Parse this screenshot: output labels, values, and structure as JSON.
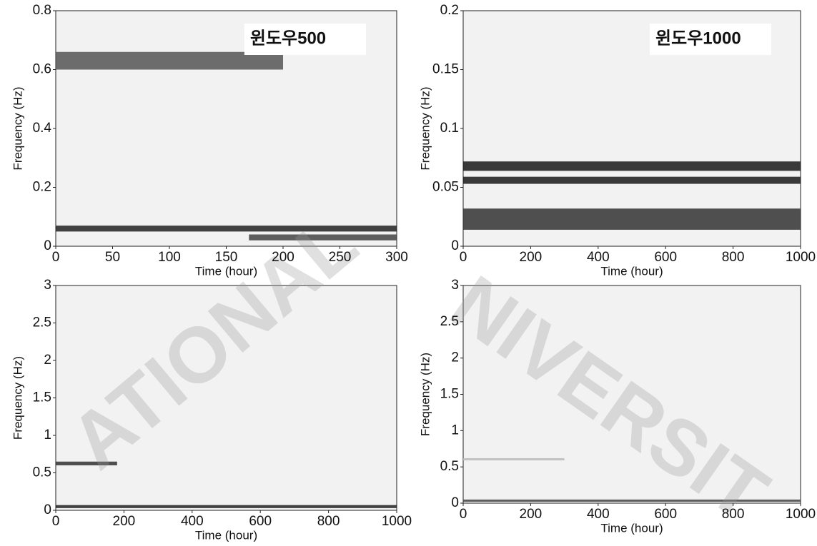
{
  "chart_data": [
    {
      "type": "spectrogram",
      "annotation": "윈도우500",
      "xlabel": "Time (hour)",
      "ylabel": "Frequency (Hz)",
      "xlim": [
        0,
        300
      ],
      "xticks": [
        0,
        50,
        100,
        150,
        200,
        250,
        300
      ],
      "ylim": [
        0,
        0.8
      ],
      "yticks": [
        0,
        0.2,
        0.4,
        0.6,
        0.8
      ],
      "bands": [
        {
          "freq": [
            0.6,
            0.66
          ],
          "time": [
            0,
            200
          ],
          "color": "#555555"
        },
        {
          "freq": [
            0.05,
            0.07
          ],
          "time": [
            0,
            300
          ],
          "color": "#222222"
        },
        {
          "freq": [
            0.02,
            0.04
          ],
          "time": [
            170,
            300
          ],
          "color": "#444444"
        }
      ]
    },
    {
      "type": "spectrogram",
      "annotation": "윈도우1000",
      "xlabel": "Time (hour)",
      "ylabel": "Frequency (Hz)",
      "xlim": [
        0,
        1000
      ],
      "xticks": [
        0,
        200,
        400,
        600,
        800,
        1000
      ],
      "ylim": [
        0,
        0.2
      ],
      "yticks": [
        0,
        0.05,
        0.1,
        0.15,
        0.2
      ],
      "bands": [
        {
          "freq": [
            0.064,
            0.072
          ],
          "time": [
            0,
            1000
          ],
          "color": "#1a1a1a"
        },
        {
          "freq": [
            0.053,
            0.059
          ],
          "time": [
            0,
            1000
          ],
          "color": "#1a1a1a"
        },
        {
          "freq": [
            0.014,
            0.032
          ],
          "time": [
            0,
            1000
          ],
          "color": "#333333"
        }
      ]
    },
    {
      "type": "spectrogram",
      "xlabel": "Time (hour)",
      "ylabel": "Frequency (Hz)",
      "xlim": [
        0,
        1000
      ],
      "xticks": [
        0,
        200,
        400,
        600,
        800,
        1000
      ],
      "ylim": [
        0,
        3
      ],
      "yticks": [
        0,
        0.5,
        1,
        1.5,
        2,
        2.5,
        3
      ],
      "bands": [
        {
          "freq": [
            0.6,
            0.65
          ],
          "time": [
            0,
            180
          ],
          "color": "#333333"
        },
        {
          "freq": [
            0.03,
            0.07
          ],
          "time": [
            0,
            1000
          ],
          "color": "#222222"
        }
      ]
    },
    {
      "type": "spectrogram",
      "xlabel": "Time (hour)",
      "ylabel": "Frequency (Hz)",
      "xlim": [
        0,
        1000
      ],
      "xticks": [
        0,
        200,
        400,
        600,
        800,
        1000
      ],
      "ylim": [
        0,
        3
      ],
      "yticks": [
        0,
        0.5,
        1,
        1.5,
        2,
        2.5,
        3
      ],
      "bands": [
        {
          "freq": [
            0.59,
            0.62
          ],
          "time": [
            0,
            300
          ],
          "color": "#bbbbbb"
        },
        {
          "freq": [
            0.02,
            0.05
          ],
          "time": [
            0,
            1000
          ],
          "color": "#444444"
        }
      ]
    }
  ],
  "watermark": [
    "ATIONAL",
    "NIVERSIT"
  ]
}
